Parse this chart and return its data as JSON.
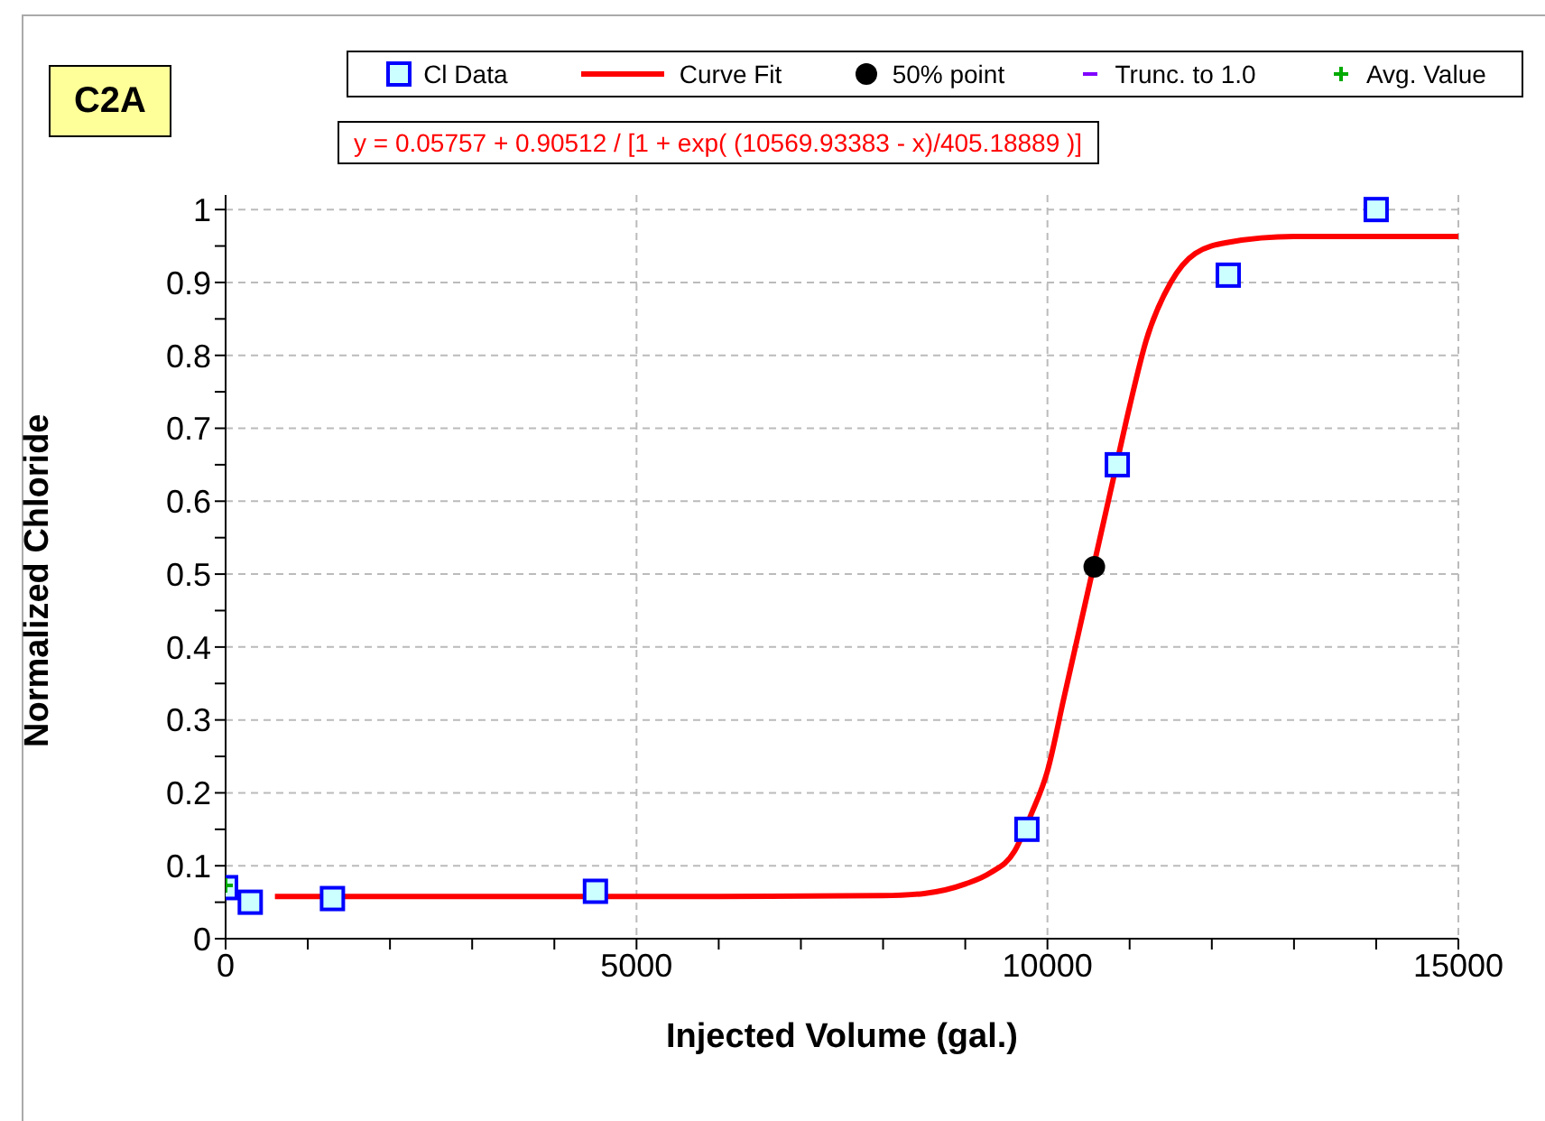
{
  "chart_data": {
    "type": "scatter",
    "title": "C2A",
    "xlabel": "Injected Volume (gal.)",
    "ylabel": "Normalized Chloride",
    "annotations": [
      "y = 0.05757 + 0.90512 / [1 + exp( (10569.93383 - x)/405.18889 )]"
    ],
    "xlim": [
      0,
      15000
    ],
    "xticks": [
      0,
      {
        "value": 1000,
        "label": null
      },
      {
        "value": 2000,
        "label": null
      },
      {
        "value": 3000,
        "label": null
      },
      {
        "value": 4000,
        "label": null
      },
      5000,
      {
        "value": 6000,
        "label": null
      },
      {
        "value": 7000,
        "label": null
      },
      {
        "value": 8000,
        "label": null
      },
      {
        "value": 9000,
        "label": null
      },
      10000,
      {
        "value": 11000,
        "label": null
      },
      {
        "value": 12000,
        "label": null
      },
      {
        "value": 13000,
        "label": null
      },
      {
        "value": 14000,
        "label": null
      },
      15000
    ],
    "ylim": [
      0,
      1.02
    ],
    "yticks": [
      0,
      {
        "value": 0.05,
        "label": null
      },
      0.1,
      {
        "value": 0.15,
        "label": null
      },
      0.2,
      {
        "value": 0.25,
        "label": null
      },
      0.3,
      {
        "value": 0.35,
        "label": null
      },
      0.4,
      {
        "value": 0.45,
        "label": null
      },
      0.5,
      {
        "value": 0.55,
        "label": null
      },
      0.6,
      {
        "value": 0.65,
        "label": null
      },
      0.7,
      {
        "value": 0.75,
        "label": null
      },
      0.8,
      {
        "value": 0.85,
        "label": null
      },
      0.9,
      {
        "value": 0.95,
        "label": null
      },
      1
    ],
    "grid": true,
    "legend": "top",
    "series": [
      {
        "name": "Cl Data",
        "marker": "square",
        "color": "#0000ff",
        "x": [
          0,
          300,
          1300,
          4500,
          9750,
          10850,
          12200,
          14000
        ],
        "values": [
          0.07,
          0.05,
          0.055,
          0.065,
          0.15,
          0.65,
          0.91,
          1.0
        ]
      },
      {
        "name": "Curve Fit",
        "type": "line",
        "color": "#ff0000",
        "x": [
          600,
          2000,
          4000,
          6000,
          8000,
          8500,
          9000,
          9300,
          9600,
          9800,
          10000,
          10200,
          10400,
          10800,
          11000,
          11200,
          11500,
          11800,
          12200,
          13000,
          15000
        ],
        "values": [
          0.058,
          0.058,
          0.058,
          0.058,
          0.059,
          0.062,
          0.075,
          0.09,
          0.12,
          0.17,
          0.23,
          0.33,
          0.43,
          0.63,
          0.73,
          0.82,
          0.9,
          0.94,
          0.955,
          0.963,
          0.963
        ]
      },
      {
        "name": "50% point",
        "marker": "circle",
        "color": "#000000",
        "x": [
          10570
        ],
        "values": [
          0.51
        ]
      },
      {
        "name": "Trunc. to 1.0",
        "marker": "none",
        "color": "#8000ff"
      },
      {
        "name": "Avg. Value",
        "marker": "cross",
        "color": "#00aa00",
        "x": [
          0
        ],
        "values": [
          0.073
        ]
      }
    ]
  }
}
